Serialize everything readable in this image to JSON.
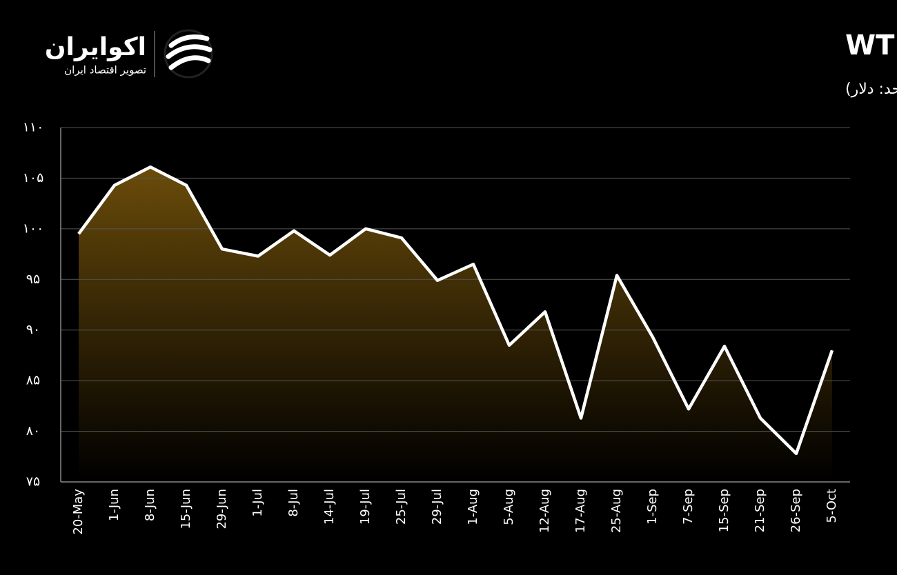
{
  "brand": {
    "name": "اکوایران",
    "tagline": "تصویر اقتصاد ایران"
  },
  "chart_data": {
    "type": "area",
    "title": "قیمت نفت سبک WTI",
    "subtitle": "(واحد: دلار)",
    "categories": [
      "20-May",
      "1-Jun",
      "8-Jun",
      "15-Jun",
      "29-Jun",
      "1-Jul",
      "8-Jul",
      "14-Jul",
      "19-Jul",
      "25-Jul",
      "29-Jul",
      "1-Aug",
      "5-Aug",
      "12-Aug",
      "17-Aug",
      "25-Aug",
      "1-Sep",
      "7-Sep",
      "15-Sep",
      "21-Sep",
      "26-Sep",
      "5-Oct"
    ],
    "values": [
      99.5,
      104.3,
      106.1,
      104.3,
      98.0,
      97.3,
      99.8,
      97.4,
      100.0,
      99.1,
      94.9,
      96.5,
      88.5,
      91.8,
      81.3,
      95.4,
      89.3,
      82.2,
      88.4,
      81.3,
      77.8,
      88.0
    ],
    "color": "#ffffff",
    "fill_color": "#6b4c0a",
    "ylim": [
      75,
      110
    ],
    "yticks": [
      {
        "value": 75,
        "label": "۷۵"
      },
      {
        "value": 80,
        "label": "۸۰"
      },
      {
        "value": 85,
        "label": "۸۵"
      },
      {
        "value": 90,
        "label": "۹۰"
      },
      {
        "value": 95,
        "label": "۹۵"
      },
      {
        "value": 100,
        "label": "۱۰۰"
      },
      {
        "value": 105,
        "label": "۱۰۵"
      },
      {
        "value": 110,
        "label": "۱۱۰"
      }
    ],
    "grid": true
  }
}
